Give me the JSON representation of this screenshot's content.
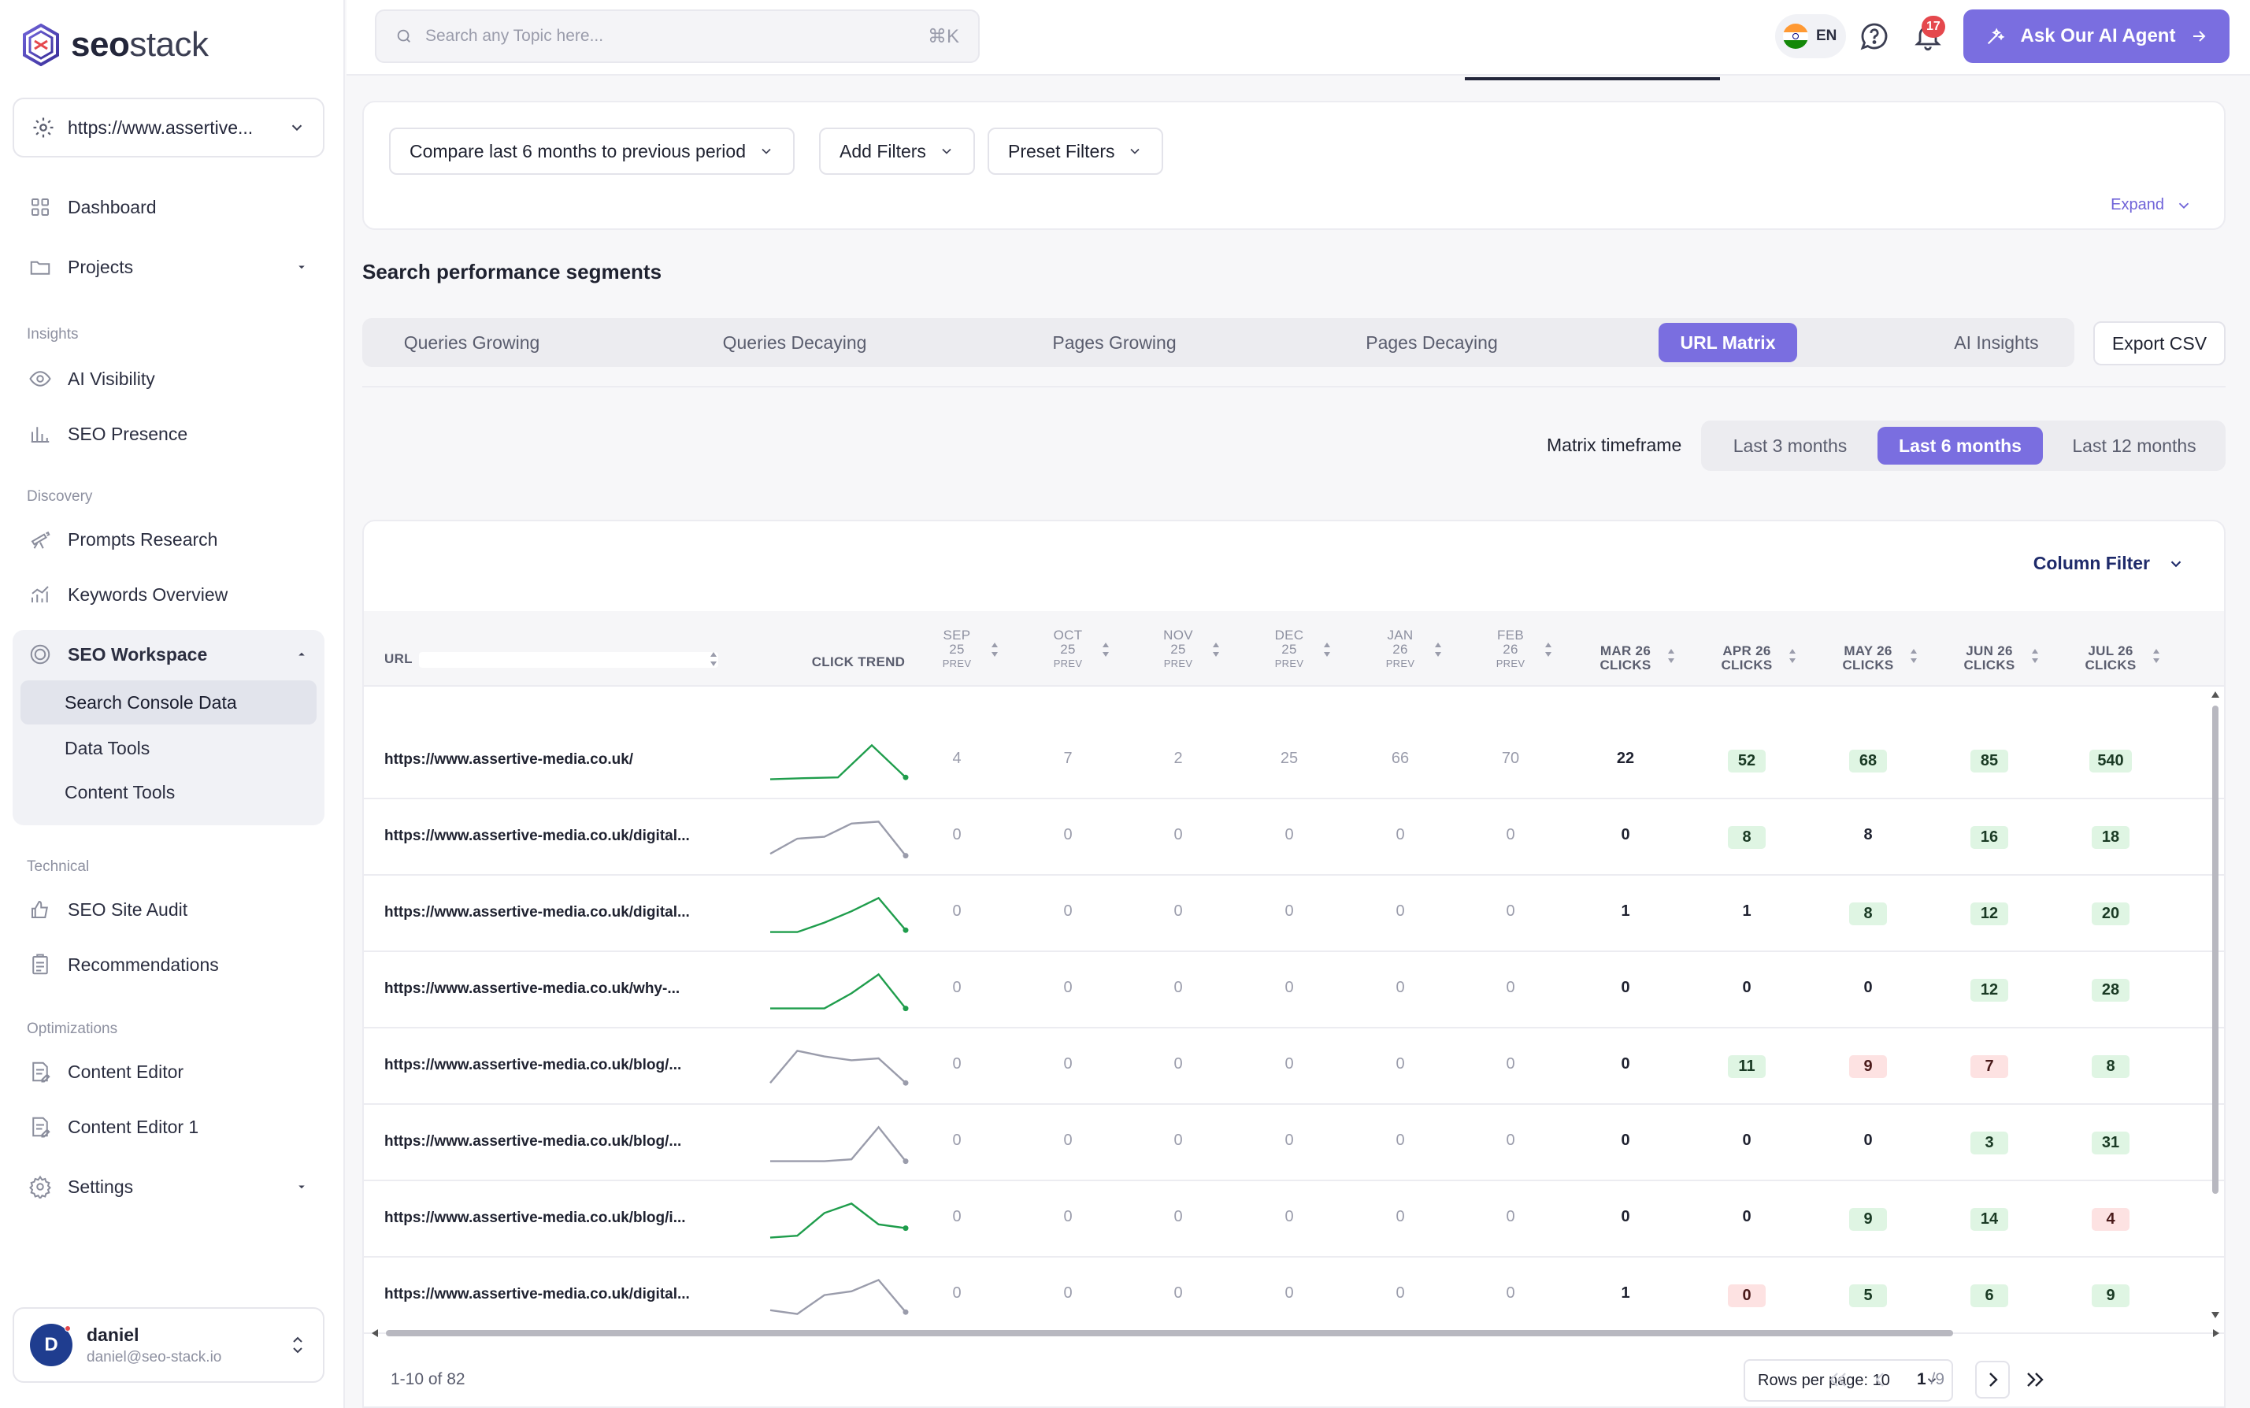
{
  "brand": {
    "name_bold": "seo",
    "name_light": "stack"
  },
  "site_selector": {
    "value": "https://www.assertive..."
  },
  "sidebar": {
    "dashboard": "Dashboard",
    "projects": "Projects",
    "insights_label": "Insights",
    "ai_visibility": "AI Visibility",
    "seo_presence": "SEO Presence",
    "discovery_label": "Discovery",
    "prompts_research": "Prompts Research",
    "keywords_overview": "Keywords Overview",
    "seo_workspace": "SEO Workspace",
    "search_console_data": "Search Console Data",
    "data_tools": "Data Tools",
    "content_tools": "Content Tools",
    "technical_label": "Technical",
    "seo_site_audit": "SEO Site Audit",
    "recommendations": "Recommendations",
    "optimizations_label": "Optimizations",
    "content_editor": "Content Editor",
    "content_editor_1": "Content Editor 1",
    "settings": "Settings"
  },
  "user": {
    "initial": "D",
    "name": "daniel",
    "email": "daniel@seo-stack.io"
  },
  "topbar": {
    "search_placeholder": "Search any Topic here...",
    "shortcut": "⌘K",
    "language": "EN",
    "notification_count": "17",
    "ai_agent_label": "Ask Our AI Agent"
  },
  "filters": {
    "compare": "Compare last 6 months to previous period",
    "add_filters": "Add Filters",
    "preset_filters": "Preset Filters",
    "expand": "Expand"
  },
  "segments": {
    "title": "Search performance segments",
    "tabs": [
      "Queries Growing",
      "Queries Decaying",
      "Pages Growing",
      "Pages Decaying",
      "URL Matrix",
      "AI Insights"
    ],
    "active": "URL Matrix",
    "export": "Export CSV"
  },
  "timeframe": {
    "label": "Matrix timeframe",
    "options": [
      "Last 3 months",
      "Last 6 months",
      "Last 12 months"
    ],
    "active": "Last 6 months"
  },
  "table": {
    "column_filter": "Column Filter",
    "headers": {
      "url": "URL",
      "trend": "CLICK TREND",
      "prev": [
        {
          "m": "SEP",
          "y": "25",
          "s": "PREV"
        },
        {
          "m": "OCT",
          "y": "25",
          "s": "PREV"
        },
        {
          "m": "NOV",
          "y": "25",
          "s": "PREV"
        },
        {
          "m": "DEC",
          "y": "25",
          "s": "PREV"
        },
        {
          "m": "JAN",
          "y": "26",
          "s": "PREV"
        },
        {
          "m": "FEB",
          "y": "26",
          "s": "PREV"
        }
      ],
      "cur": [
        {
          "m": "MAR 26",
          "s": "CLICKS"
        },
        {
          "m": "APR 26",
          "s": "CLICKS"
        },
        {
          "m": "MAY 26",
          "s": "CLICKS"
        },
        {
          "m": "JUN 26",
          "s": "CLICKS"
        },
        {
          "m": "JUL 26",
          "s": "CLICKS"
        }
      ]
    },
    "rows": [
      {
        "url": "https://www.assertive-media.co.uk/",
        "prev": [
          "4",
          "7",
          "2",
          "25",
          "66",
          "70"
        ],
        "cur": [
          "22",
          "52",
          "68",
          "85",
          "540"
        ],
        "tone": [
          "plain",
          "green",
          "green",
          "green",
          "green"
        ],
        "trend": "green",
        "spark": [
          0.05,
          0.08,
          0.1,
          0.95,
          0.1
        ]
      },
      {
        "url": "https://www.assertive-media.co.uk/digital...",
        "prev": [
          "0",
          "0",
          "0",
          "0",
          "0",
          "0"
        ],
        "cur": [
          "0",
          "8",
          "8",
          "16",
          "18"
        ],
        "tone": [
          "plain",
          "green",
          "plain",
          "green",
          "green"
        ],
        "trend": "gray",
        "spark": [
          0.1,
          0.5,
          0.55,
          0.9,
          0.95,
          0.05
        ]
      },
      {
        "url": "https://www.assertive-media.co.uk/digital...",
        "prev": [
          "0",
          "0",
          "0",
          "0",
          "0",
          "0"
        ],
        "cur": [
          "1",
          "1",
          "8",
          "12",
          "20"
        ],
        "tone": [
          "plain",
          "plain",
          "green",
          "green",
          "green"
        ],
        "trend": "green",
        "spark": [
          0.05,
          0.05,
          0.3,
          0.6,
          0.95,
          0.1
        ]
      },
      {
        "url": "https://www.assertive-media.co.uk/why-...",
        "prev": [
          "0",
          "0",
          "0",
          "0",
          "0",
          "0"
        ],
        "cur": [
          "0",
          "0",
          "0",
          "12",
          "28"
        ],
        "tone": [
          "plain",
          "plain",
          "plain",
          "green",
          "green"
        ],
        "trend": "green",
        "spark": [
          0.05,
          0.05,
          0.05,
          0.45,
          0.95,
          0.05
        ]
      },
      {
        "url": "https://www.assertive-media.co.uk/blog/...",
        "prev": [
          "0",
          "0",
          "0",
          "0",
          "0",
          "0"
        ],
        "cur": [
          "0",
          "11",
          "9",
          "7",
          "8"
        ],
        "tone": [
          "plain",
          "green",
          "red",
          "red",
          "green"
        ],
        "trend": "gray",
        "spark": [
          0.1,
          0.95,
          0.8,
          0.7,
          0.75,
          0.1
        ]
      },
      {
        "url": "https://www.assertive-media.co.uk/blog/...",
        "prev": [
          "0",
          "0",
          "0",
          "0",
          "0",
          "0"
        ],
        "cur": [
          "0",
          "0",
          "0",
          "3",
          "31"
        ],
        "tone": [
          "plain",
          "plain",
          "plain",
          "green",
          "green"
        ],
        "trend": "gray",
        "spark": [
          0.05,
          0.05,
          0.05,
          0.1,
          0.95,
          0.05
        ]
      },
      {
        "url": "https://www.assertive-media.co.uk/blog/i...",
        "prev": [
          "0",
          "0",
          "0",
          "0",
          "0",
          "0"
        ],
        "cur": [
          "0",
          "0",
          "9",
          "14",
          "4"
        ],
        "tone": [
          "plain",
          "plain",
          "green",
          "green",
          "red"
        ],
        "trend": "green",
        "spark": [
          0.05,
          0.1,
          0.7,
          0.95,
          0.4,
          0.3
        ]
      },
      {
        "url": "https://www.assertive-media.co.uk/digital...",
        "prev": [
          "0",
          "0",
          "0",
          "0",
          "0",
          "0"
        ],
        "cur": [
          "1",
          "0",
          "5",
          "6",
          "9"
        ],
        "tone": [
          "plain",
          "red",
          "green",
          "green",
          "green"
        ],
        "trend": "gray",
        "spark": [
          0.15,
          0.05,
          0.55,
          0.65,
          0.95,
          0.1
        ]
      }
    ],
    "pagination": {
      "range": "1-10 of 82",
      "rows_per_page": "Rows per page: 10",
      "page": "1",
      "total": "/9"
    }
  },
  "colors": {
    "accent": "#7a6ee0",
    "green": "#1f9d4c",
    "gray": "#9a9cab"
  }
}
